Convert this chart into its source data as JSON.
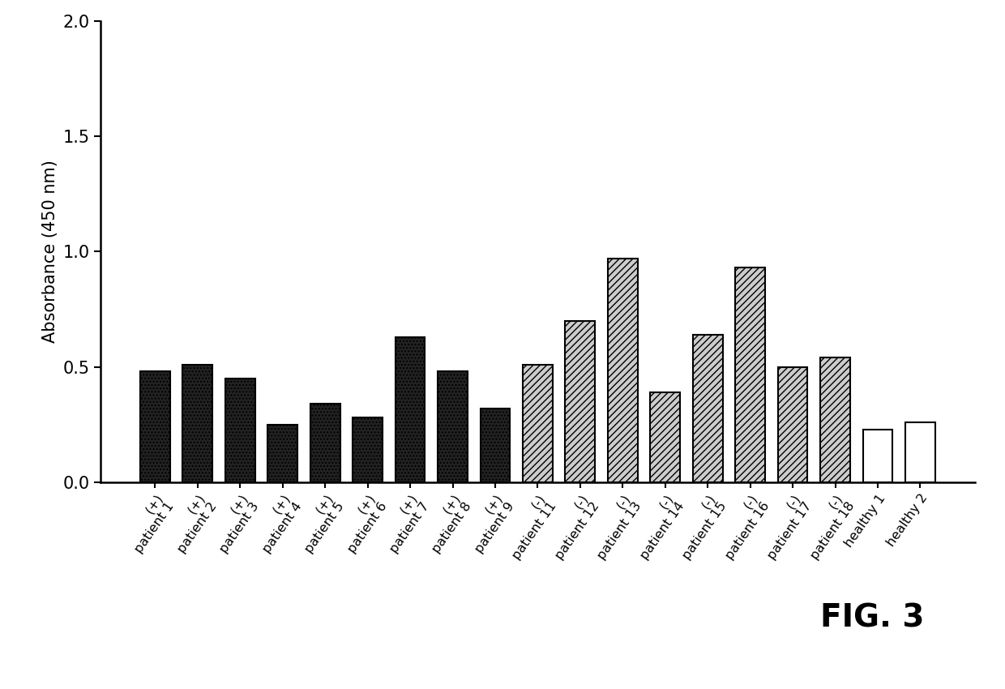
{
  "categories": [
    "patient 1\n(+)",
    "patient 2\n(+)",
    "patient 3\n(+)",
    "patient 4\n(+)",
    "patient 5\n(+)",
    "patient 6\n(+)",
    "patient 7\n(+)",
    "patient 8\n(+)",
    "patient 9\n(+)",
    "patient 11\n(-)",
    "patient 12\n(-)",
    "patient 13\n(-)",
    "patient 14\n(-)",
    "patient 15\n(-)",
    "patient 16\n(-)",
    "patient 17\n(-)",
    "patient 18\n(-)",
    "healthy 1",
    "healthy 2"
  ],
  "values": [
    0.48,
    0.51,
    0.45,
    0.25,
    0.34,
    0.28,
    0.63,
    0.48,
    0.32,
    0.51,
    0.7,
    0.97,
    0.39,
    0.64,
    0.93,
    0.5,
    0.54,
    0.23,
    0.26
  ],
  "bar_styles": [
    "dark",
    "dark",
    "dark",
    "dark",
    "dark",
    "dark",
    "dark",
    "dark",
    "dark",
    "light",
    "light",
    "light",
    "light",
    "light",
    "light",
    "light",
    "light",
    "white",
    "white"
  ],
  "dark_facecolor": "#222222",
  "dark_hatch": "....",
  "dark_hatch_color": "#888888",
  "light_facecolor": "#cccccc",
  "light_hatch": "////",
  "light_hatch_color": "#888888",
  "white_facecolor": "#ffffff",
  "white_hatch": "",
  "ylabel": "Absorbance (450 nm)",
  "ylim": [
    0.0,
    2.0
  ],
  "yticks": [
    0.0,
    0.5,
    1.0,
    1.5,
    2.0
  ],
  "fig_annotation": "FIG. 3",
  "background_color": "#ffffff",
  "bar_edge_color": "#000000",
  "bar_linewidth": 1.5
}
